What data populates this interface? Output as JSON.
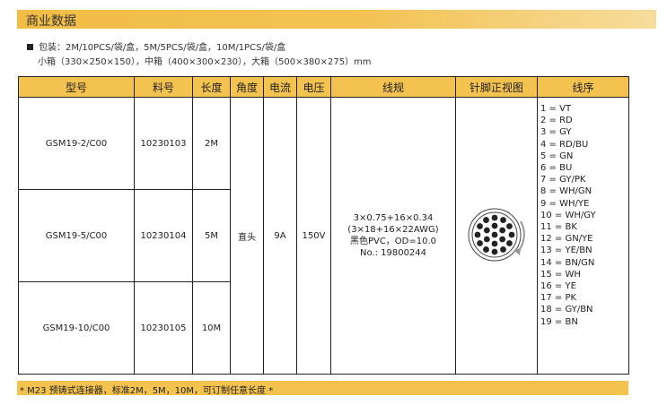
{
  "section_title": "商业数据",
  "packaging": {
    "line1": "包装：2M/10PCS/袋/盒，5M/5PCS/袋/盒，10M/1PCS/袋/盒",
    "line2": "小箱（330×250×150），中箱（400×300×230），大箱（500×380×275）mm"
  },
  "table": {
    "headers": [
      "型号",
      "料号",
      "长度",
      "角度",
      "电流",
      "电压",
      "线规",
      "针脚正视图",
      "线序"
    ],
    "rows": [
      {
        "model": "GSM19-2/C00",
        "part": "10230103",
        "length": "2M"
      },
      {
        "model": "GSM19-5/C00",
        "part": "10230104",
        "length": "5M"
      },
      {
        "model": "GSM19-10/C00",
        "part": "10230105",
        "length": "10M"
      }
    ],
    "angle": "直头",
    "current": "9A",
    "voltage": "150V",
    "wire_spec": [
      "3×0.75+16×0.34",
      "(3×18+16×22AWG)",
      "黑色PVC，OD=10.0",
      "No.: 19800244"
    ],
    "wire_order": [
      "1 = VT",
      "2 = RD",
      "3 = GY",
      "4 = RD/BU",
      "5 = GN",
      "6 = BU",
      "7 = GY/PK",
      "8 = WH/GN",
      "9 = WH/YE",
      "10 = WH/GY",
      "11 = BK",
      "12 = GN/YE",
      "13 = YE/BN",
      "14 = BN/GN",
      "15 = WH",
      "16 = YE",
      "17 = PK",
      "18 = GY/BN",
      "19 = BN"
    ]
  },
  "footer": "* M23 预铸式连接器，标准2M，5M，10M，可订制任意长度 *",
  "colors": {
    "accent": "#f3c24f"
  }
}
